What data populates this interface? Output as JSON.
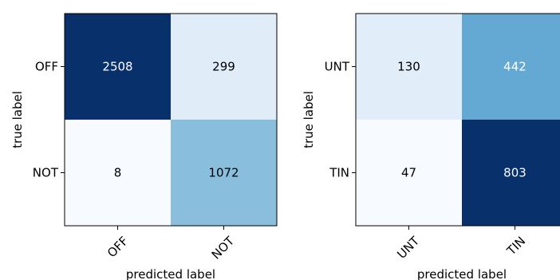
{
  "chart_data": [
    {
      "type": "heatmap",
      "title": "",
      "xlabel": "predicted label",
      "ylabel": "true label",
      "x_categories": [
        "OFF",
        "NOT"
      ],
      "y_categories": [
        "OFF",
        "NOT"
      ],
      "values": [
        [
          2508,
          299
        ],
        [
          8,
          1072
        ]
      ],
      "colormap": "Blues",
      "grid": false,
      "legend": "none"
    },
    {
      "type": "heatmap",
      "title": "",
      "xlabel": "predicted label",
      "ylabel": "true label",
      "x_categories": [
        "UNT",
        "TIN"
      ],
      "y_categories": [
        "UNT",
        "TIN"
      ],
      "values": [
        [
          130,
          442
        ],
        [
          47,
          803
        ]
      ],
      "colormap": "Blues",
      "grid": false,
      "legend": "none"
    }
  ]
}
